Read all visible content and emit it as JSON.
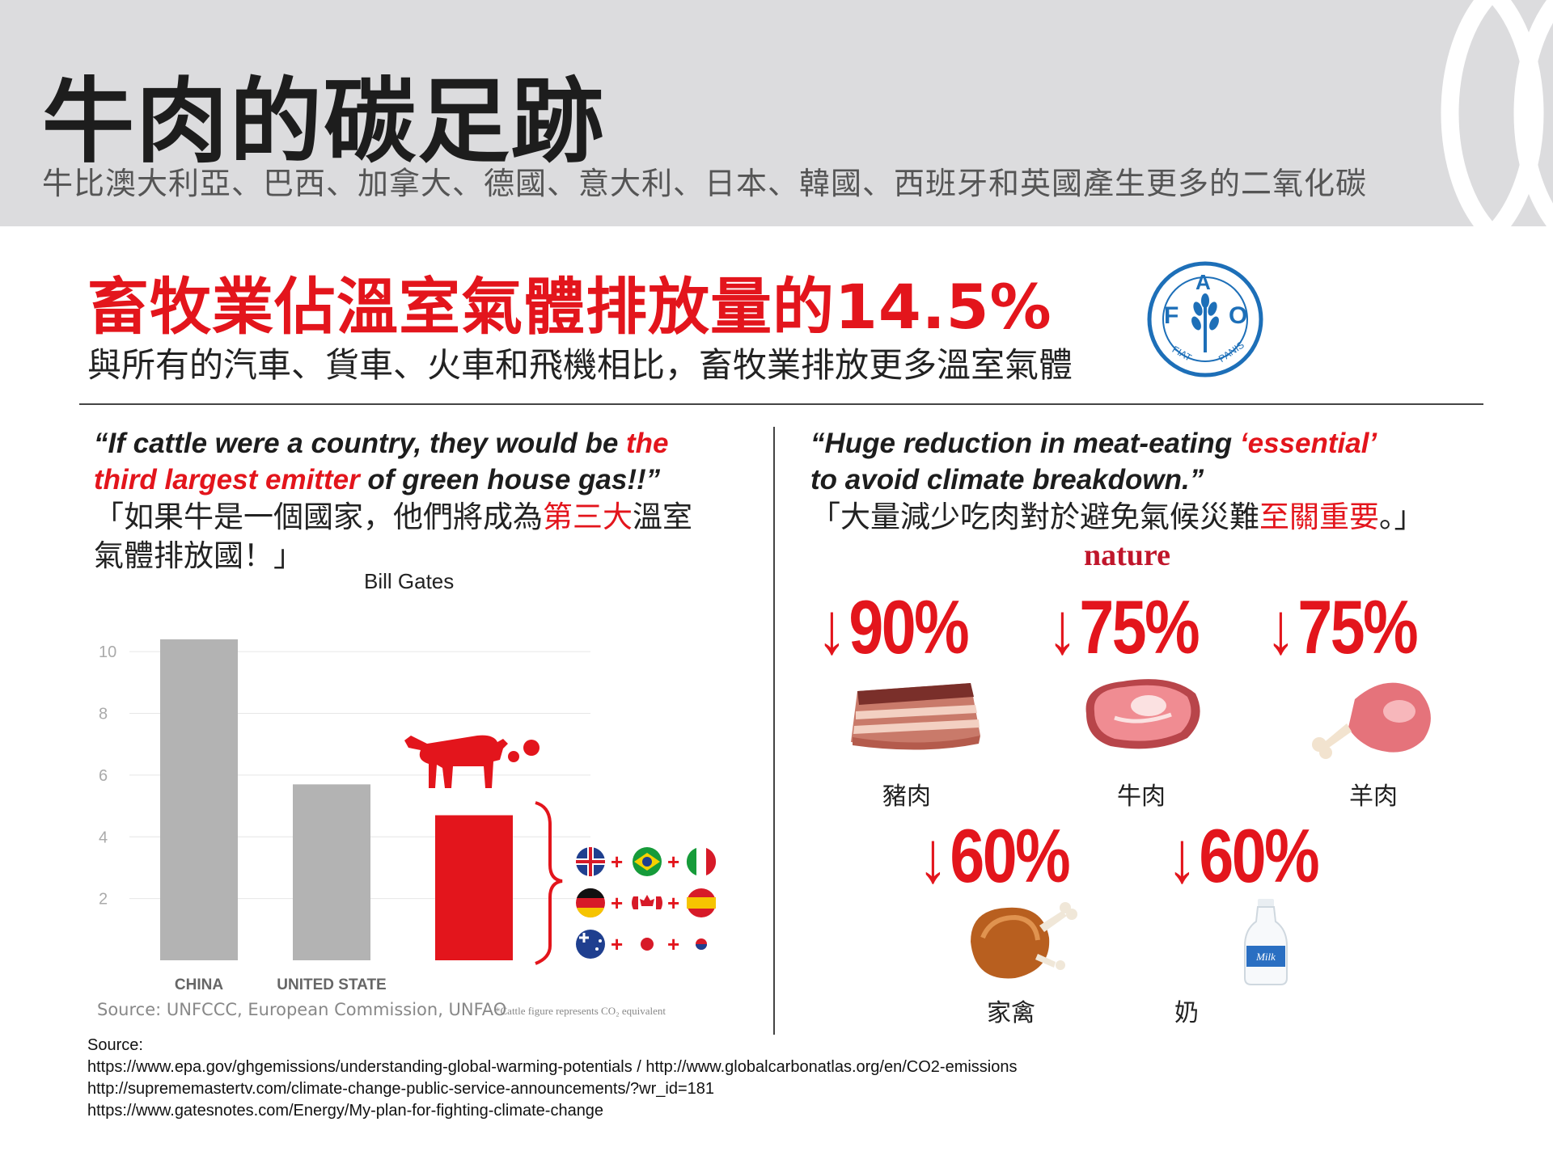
{
  "header": {
    "title": "牛肉的碳足跡",
    "subtitle": "牛比澳大利亞、巴西、加拿大、德國、意大利、日本、韓國、西班牙和英國產生更多的二氧化碳"
  },
  "headline": {
    "stat": "畜牧業佔溫室氣體排放量的14.5%",
    "sub": "與所有的汽車、貨車、火車和飛機相比，畜牧業排放更多溫室氣體"
  },
  "fao_logo": {
    "letters": "FAO",
    "motto": "FIAT PANIS"
  },
  "left_quote": {
    "en_line1_a": "“If cattle were a country, they would be ",
    "en_line1_b": "the",
    "en_line2_a": "third largest emitter",
    "en_line2_b": " of green house gas!!”",
    "zh_line1_a": "「如果牛是一個國家，他們將成為",
    "zh_line1_b": "第三大",
    "zh_line1_c": "溫室",
    "zh_line2": "氣體排放國！」",
    "author": "Bill Gates"
  },
  "right_quote": {
    "en_line1_a": "“Huge reduction in meat-eating ",
    "en_line1_b": "‘essential’",
    "en_line2": "to avoid climate breakdown.”",
    "zh_a": "「大量減少吃肉對於避免氣候災難",
    "zh_b": "至關重要",
    "zh_c": "。」",
    "publication": "nature"
  },
  "chart_data": {
    "type": "bar",
    "categories": [
      "CHINA",
      "UNITED STATE",
      ""
    ],
    "values": [
      10.4,
      5.7,
      4.7
    ],
    "yticks": [
      2,
      4,
      6,
      8,
      10
    ],
    "ylim": [
      0,
      11
    ],
    "bar_colors": [
      "#b3b3b3",
      "#b3b3b3",
      "#e3151c"
    ],
    "grid": true,
    "source": "Source: UNFCCC, European Commission, UNFAO",
    "note": "*Cattle figure represents CO₂ equivalent"
  },
  "reductions": [
    {
      "percent": "90%",
      "label": "豬肉",
      "icon": "bacon-icon"
    },
    {
      "percent": "75%",
      "label": "牛肉",
      "icon": "steak-icon"
    },
    {
      "percent": "75%",
      "label": "羊肉",
      "icon": "lamb-leg-icon"
    },
    {
      "percent": "60%",
      "label": "家禽",
      "icon": "roast-chicken-icon"
    },
    {
      "percent": "60%",
      "label": "奶",
      "icon": "milk-bottle-icon"
    }
  ],
  "arrow_glyph": "↓",
  "bottle_text": "Milk",
  "sources": {
    "heading": "Source:",
    "lines": [
      "https://www.epa.gov/ghgemissions/understanding-global-warming-potentials  /  http://www.globalcarbonatlas.org/en/CO2-emissions",
      "http://suprememastertv.com/climate-change-public-service-announcements/?wr_id=181",
      "https://www.gatesnotes.com/Energy/My-plan-for-fighting-climate-change"
    ]
  },
  "colors": {
    "accent": "#e3151c",
    "header_bg": "#dcdcde",
    "bar_gray": "#b3b3b3",
    "fao_blue": "#1d6fb8"
  }
}
